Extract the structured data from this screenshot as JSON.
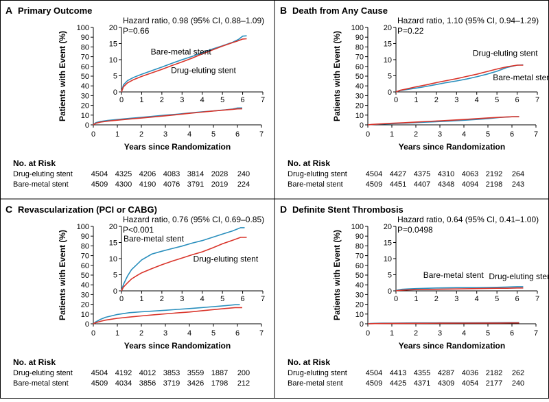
{
  "colors": {
    "frame": "#000000",
    "bms_series": "#2a8fbd",
    "des_series": "#d9342a",
    "panel_label_bg": "#ffffff"
  },
  "common": {
    "xlabel": "Years since Randomization",
    "ylabel": "Patients with Event (%)",
    "risk_title": "No. at Risk"
  },
  "chart_data": [
    {
      "type": "line",
      "panel_letter": "A",
      "title": "Primary Outcome",
      "hr_text": "Hazard ratio, 0.98 (95% CI, 0.88–1.09)",
      "p_text": "P=0.66",
      "xlabel": "Years since Randomization",
      "ylabel": "Patients with Event (%)",
      "xlim": [
        0,
        7
      ],
      "ylim": [
        0,
        100
      ],
      "x_ticks": [
        0,
        1,
        2,
        3,
        4,
        5,
        6,
        7
      ],
      "y_ticks": [
        0,
        10,
        20,
        30,
        40,
        50,
        60,
        70,
        80,
        90,
        100
      ],
      "inset": {
        "xlim": [
          0,
          7
        ],
        "ylim": [
          0,
          20
        ],
        "x_ticks": [
          0,
          1,
          2,
          3,
          4,
          5,
          6,
          7
        ],
        "y_ticks": [
          0,
          5,
          10,
          15,
          20
        ]
      },
      "series": [
        {
          "name": "Bare-metal stent",
          "color_key": "bms_series",
          "x": [
            0,
            0.1,
            0.3,
            0.6,
            1,
            1.5,
            2,
            2.5,
            3,
            3.5,
            4,
            4.5,
            5,
            5.5,
            5.8,
            6.0,
            6.2
          ],
          "y": [
            0,
            2.2,
            3.5,
            4.5,
            5.5,
            6.6,
            7.7,
            8.9,
            10.0,
            11.0,
            12.2,
            13.3,
            14.3,
            15.4,
            16.3,
            17.3,
            17.4
          ]
        },
        {
          "name": "Drug-eluting stent",
          "color_key": "des_series",
          "x": [
            0,
            0.1,
            0.3,
            0.6,
            1,
            1.5,
            2,
            2.5,
            3,
            3.5,
            4,
            4.5,
            5,
            5.5,
            5.8,
            6.0,
            6.2
          ],
          "y": [
            0,
            1.6,
            2.8,
            3.8,
            4.8,
            5.9,
            7.0,
            8.2,
            9.3,
            10.5,
            11.8,
            13.0,
            14.2,
            15.3,
            15.9,
            16.4,
            16.5
          ]
        }
      ],
      "annotations": [
        {
          "text": "Bare-metal stent",
          "x": 1.45,
          "y": 11.6
        },
        {
          "text": "Drug-eluting stent",
          "x": 2.45,
          "y": 5.9
        }
      ],
      "risk_table": {
        "title": "No. at Risk",
        "rows": [
          {
            "label": "Drug-eluting stent",
            "values": [
              "4504",
              "4325",
              "4206",
              "4083",
              "3814",
              "2028",
              "240"
            ]
          },
          {
            "label": "Bare-metal stent",
            "values": [
              "4509",
              "4300",
              "4190",
              "4076",
              "3791",
              "2019",
              "224"
            ]
          }
        ]
      }
    },
    {
      "type": "line",
      "panel_letter": "B",
      "title": "Death from Any Cause",
      "hr_text": "Hazard ratio, 1.10 (95% CI, 0.94–1.29)",
      "p_text": "P=0.22",
      "xlabel": "Years since Randomization",
      "ylabel": "Patients with Event (%)",
      "xlim": [
        0,
        7
      ],
      "ylim": [
        0,
        100
      ],
      "x_ticks": [
        0,
        1,
        2,
        3,
        4,
        5,
        6,
        7
      ],
      "y_ticks": [
        0,
        10,
        20,
        30,
        40,
        50,
        60,
        70,
        80,
        90,
        100
      ],
      "inset": {
        "xlim": [
          0,
          7
        ],
        "ylim": [
          0,
          20
        ],
        "x_ticks": [
          0,
          1,
          2,
          3,
          4,
          5,
          6,
          7
        ],
        "y_ticks": [
          0,
          5,
          10,
          15,
          20
        ]
      },
      "series": [
        {
          "name": "Bare-metal stent",
          "color_key": "bms_series",
          "x": [
            0,
            0.2,
            0.5,
            1,
            1.5,
            2,
            2.5,
            3,
            3.5,
            4,
            4.5,
            5,
            5.5,
            6.0,
            6.3
          ],
          "y": [
            0,
            0.4,
            0.7,
            1.2,
            1.7,
            2.3,
            2.9,
            3.4,
            4.0,
            4.7,
            5.5,
            6.4,
            7.6,
            8.3,
            8.4
          ]
        },
        {
          "name": "Drug-eluting stent",
          "color_key": "des_series",
          "x": [
            0,
            0.2,
            0.5,
            1,
            1.5,
            2,
            2.5,
            3,
            3.5,
            4,
            4.5,
            5,
            5.5,
            6.0,
            6.3
          ],
          "y": [
            0,
            0.5,
            0.9,
            1.6,
            2.2,
            2.9,
            3.5,
            4.1,
            4.8,
            5.5,
            6.3,
            7.1,
            7.8,
            8.3,
            8.3
          ]
        }
      ],
      "annotations": [
        {
          "text": "Drug-eluting stent",
          "x": 3.8,
          "y": 11.2
        },
        {
          "text": "Bare-metal stent",
          "x": 4.8,
          "y": 3.6
        }
      ],
      "risk_table": {
        "title": "No. at Risk",
        "rows": [
          {
            "label": "Drug-eluting stent",
            "values": [
              "4504",
              "4427",
              "4375",
              "4310",
              "4063",
              "2192",
              "264"
            ]
          },
          {
            "label": "Bare-metal stent",
            "values": [
              "4509",
              "4451",
              "4407",
              "4348",
              "4094",
              "2198",
              "243"
            ]
          }
        ]
      }
    },
    {
      "type": "line",
      "panel_letter": "C",
      "title": "Revascularization (PCI or CABG)",
      "hr_text": "Hazard ratio, 0.76 (95% CI, 0.69–0.85)",
      "p_text": "P<0.001",
      "xlabel": "Years since Randomization",
      "ylabel": "Patients with Event (%)",
      "xlim": [
        0,
        7
      ],
      "ylim": [
        0,
        100
      ],
      "x_ticks": [
        0,
        1,
        2,
        3,
        4,
        5,
        6,
        7
      ],
      "y_ticks": [
        0,
        10,
        20,
        30,
        40,
        50,
        60,
        70,
        80,
        90,
        100
      ],
      "inset": {
        "xlim": [
          0,
          7
        ],
        "ylim": [
          0,
          20
        ],
        "x_ticks": [
          0,
          1,
          2,
          3,
          4,
          5,
          6,
          7
        ],
        "y_ticks": [
          0,
          5,
          10,
          15,
          20
        ]
      },
      "series": [
        {
          "name": "Bare-metal stent",
          "color_key": "bms_series",
          "x": [
            0,
            0.1,
            0.3,
            0.5,
            0.75,
            1,
            1.5,
            2,
            2.5,
            3,
            3.5,
            4,
            4.5,
            5,
            5.5,
            5.9,
            6.1
          ],
          "y": [
            0,
            2.0,
            4.6,
            6.6,
            8.1,
            9.6,
            11.4,
            12.3,
            13.1,
            13.9,
            14.8,
            15.6,
            16.6,
            17.6,
            18.6,
            19.6,
            19.6
          ]
        },
        {
          "name": "Drug-eluting stent",
          "color_key": "des_series",
          "x": [
            0,
            0.1,
            0.3,
            0.5,
            0.75,
            1,
            1.5,
            2,
            2.5,
            3,
            3.5,
            4,
            4.5,
            5,
            5.5,
            5.9,
            6.2
          ],
          "y": [
            0,
            1.2,
            2.5,
            3.7,
            4.7,
            5.6,
            6.9,
            8.1,
            9.2,
            10.2,
            11.2,
            12.1,
            13.3,
            14.6,
            15.7,
            16.6,
            16.6
          ]
        }
      ],
      "annotations": [
        {
          "text": "Bare-metal stent",
          "x": 0.1,
          "y": 15.3
        },
        {
          "text": "Drug-eluting stent",
          "x": 3.55,
          "y": 9.0
        }
      ],
      "risk_table": {
        "title": "No. at Risk",
        "rows": [
          {
            "label": "Drug-eluting stent",
            "values": [
              "4504",
              "4192",
              "4012",
              "3853",
              "3559",
              "1887",
              "200"
            ]
          },
          {
            "label": "Bare-metal stent",
            "values": [
              "4509",
              "4034",
              "3856",
              "3719",
              "3426",
              "1798",
              "212"
            ]
          }
        ]
      }
    },
    {
      "type": "line",
      "panel_letter": "D",
      "title": "Definite Stent Thrombosis",
      "hr_text": "Hazard ratio, 0.64 (95% CI, 0.41–1.00)",
      "p_text": "P=0.0498",
      "xlabel": "Years since Randomization",
      "ylabel": "Patients with Event (%)",
      "xlim": [
        0,
        7
      ],
      "ylim": [
        0,
        100
      ],
      "x_ticks": [
        0,
        1,
        2,
        3,
        4,
        5,
        6,
        7
      ],
      "y_ticks": [
        0,
        10,
        20,
        30,
        40,
        50,
        60,
        70,
        80,
        90,
        100
      ],
      "inset": {
        "xlim": [
          0,
          7
        ],
        "ylim": [
          0,
          20
        ],
        "x_ticks": [
          0,
          1,
          2,
          3,
          4,
          5,
          6,
          7
        ],
        "y_ticks": [
          0,
          5,
          10,
          15,
          20
        ]
      },
      "series": [
        {
          "name": "Bare-metal stent",
          "color_key": "bms_series",
          "x": [
            0,
            0.1,
            0.3,
            0.6,
            1,
            2,
            3,
            4,
            5,
            5.5,
            6.0,
            6.3
          ],
          "y": [
            0,
            0.3,
            0.5,
            0.6,
            0.7,
            0.9,
            1.0,
            1.0,
            1.1,
            1.2,
            1.3,
            1.3
          ]
        },
        {
          "name": "Drug-eluting stent",
          "color_key": "des_series",
          "x": [
            0,
            0.1,
            0.3,
            0.6,
            1,
            2,
            3,
            4,
            5,
            5.5,
            6.0,
            6.3
          ],
          "y": [
            0,
            0.1,
            0.2,
            0.3,
            0.4,
            0.5,
            0.6,
            0.7,
            0.8,
            0.8,
            0.9,
            0.9
          ]
        }
      ],
      "annotations": [
        {
          "text": "Bare-metal stent",
          "x": 1.35,
          "y": 4.0
        },
        {
          "text": "Drug-eluting stent",
          "x": 4.6,
          "y": 3.6
        }
      ],
      "risk_table": {
        "title": "No. at Risk",
        "rows": [
          {
            "label": "Drug-eluting stent",
            "values": [
              "4504",
              "4413",
              "4355",
              "4287",
              "4036",
              "2182",
              "262"
            ]
          },
          {
            "label": "Bare-metal stent",
            "values": [
              "4509",
              "4425",
              "4371",
              "4309",
              "4054",
              "2177",
              "240"
            ]
          }
        ]
      }
    }
  ]
}
